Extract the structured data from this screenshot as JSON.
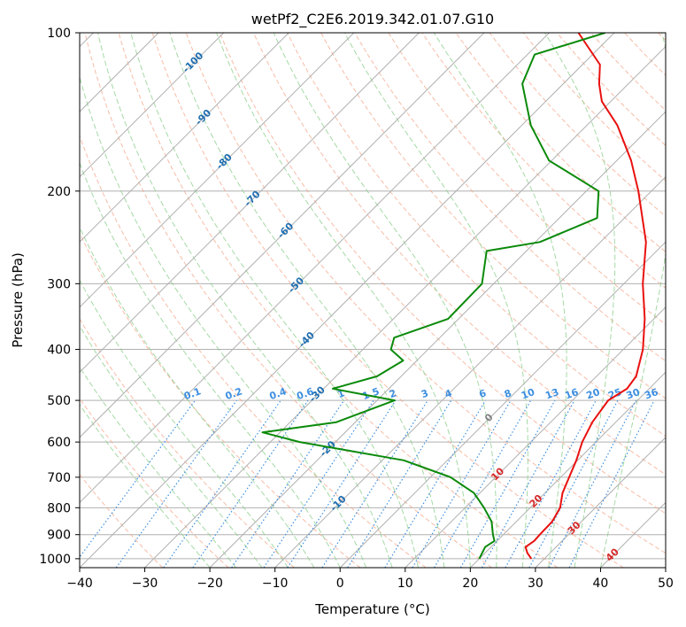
{
  "chart_data": {
    "type": "line",
    "subtype": "skew-t log-p diagram",
    "title": "wetPf2_C2E6.2019.342.01.07.G10",
    "xlabel": "Temperature (°C)",
    "ylabel": "Pressure (hPa)",
    "xlim": [
      -40,
      50
    ],
    "ylim": [
      1040,
      100
    ],
    "y_scale": "log",
    "grid": true,
    "x_ticks": [
      -40,
      -30,
      -20,
      -10,
      0,
      10,
      20,
      30,
      40,
      50
    ],
    "y_ticks": [
      100,
      200,
      300,
      400,
      500,
      600,
      700,
      800,
      900,
      1000
    ],
    "series": [
      {
        "role": "temperature",
        "color": "#e8110f",
        "points": [
          {
            "p": 1000,
            "t": 28.0
          },
          {
            "p": 975,
            "t": 26.5
          },
          {
            "p": 950,
            "t": 25.3
          },
          {
            "p": 925,
            "t": 25.7
          },
          {
            "p": 900,
            "t": 25.6
          },
          {
            "p": 850,
            "t": 25.5
          },
          {
            "p": 800,
            "t": 24.6
          },
          {
            "p": 750,
            "t": 22.7
          },
          {
            "p": 700,
            "t": 21.3
          },
          {
            "p": 650,
            "t": 19.8
          },
          {
            "p": 600,
            "t": 17.9
          },
          {
            "p": 550,
            "t": 16.4
          },
          {
            "p": 500,
            "t": 15.5
          },
          {
            "p": 475,
            "t": 16.6
          },
          {
            "p": 450,
            "t": 16.1
          },
          {
            "p": 400,
            "t": 13.0
          },
          {
            "p": 350,
            "t": 8.6
          },
          {
            "p": 300,
            "t": 2.9
          },
          {
            "p": 250,
            "t": -3.0
          },
          {
            "p": 200,
            "t": -12.0
          },
          {
            "p": 175,
            "t": -17.8
          },
          {
            "p": 150,
            "t": -25.3
          },
          {
            "p": 135,
            "t": -31.4
          },
          {
            "p": 125,
            "t": -34.5
          },
          {
            "p": 115,
            "t": -37.3
          },
          {
            "p": 100,
            "t": -45.5
          }
        ]
      },
      {
        "role": "dewpoint",
        "color": "#0a8a0a",
        "points": [
          {
            "p": 1000,
            "t": 20.0
          },
          {
            "p": 950,
            "t": 19.1
          },
          {
            "p": 925,
            "t": 19.6
          },
          {
            "p": 900,
            "t": 18.4
          },
          {
            "p": 850,
            "t": 16.2
          },
          {
            "p": 800,
            "t": 12.9
          },
          {
            "p": 750,
            "t": 9.1
          },
          {
            "p": 700,
            "t": 3.1
          },
          {
            "p": 650,
            "t": -6.7
          },
          {
            "p": 600,
            "t": -25.5
          },
          {
            "p": 575,
            "t": -32.7
          },
          {
            "p": 550,
            "t": -22.9
          },
          {
            "p": 500,
            "t": -17.3
          },
          {
            "p": 475,
            "t": -28.6
          },
          {
            "p": 450,
            "t": -23.7
          },
          {
            "p": 420,
            "t": -22.1
          },
          {
            "p": 400,
            "t": -25.7
          },
          {
            "p": 380,
            "t": -27.0
          },
          {
            "p": 350,
            "t": -21.6
          },
          {
            "p": 300,
            "t": -21.8
          },
          {
            "p": 260,
            "t": -26.1
          },
          {
            "p": 250,
            "t": -19.3
          },
          {
            "p": 225,
            "t": -14.2
          },
          {
            "p": 200,
            "t": -18.1
          },
          {
            "p": 175,
            "t": -30.4
          },
          {
            "p": 150,
            "t": -38.6
          },
          {
            "p": 125,
            "t": -46.3
          },
          {
            "p": 110,
            "t": -48.9
          },
          {
            "p": 100,
            "t": -41.4
          }
        ]
      }
    ],
    "annotations": {
      "isotherm_labels": [
        "-100",
        "-90",
        "-80",
        "-70",
        "-60",
        "-50",
        "-40",
        "-30",
        "-20",
        "-10",
        "0",
        "10",
        "20",
        "30",
        "40"
      ],
      "mixing_ratio_labels": [
        "0.1",
        "0.2",
        "0.4",
        "0.6",
        "1",
        "1.5",
        "2",
        "3",
        "4",
        "6",
        "8",
        "10",
        "13",
        "16",
        "20",
        "25",
        "30",
        "36"
      ]
    },
    "colors": {
      "temperature": "#e8110f",
      "dewpoint": "#0a8a0a",
      "dry_adiabat": "#f4a58a",
      "moist_adiabat": "#8fcf8f",
      "mixing_ratio": "#3d8fe0",
      "grid": "#b0b0b0",
      "isotherm_label_cold": "#1f6eb0",
      "isotherm_label_warm": "#d62728",
      "isotherm_label_zero": "#808080"
    }
  }
}
